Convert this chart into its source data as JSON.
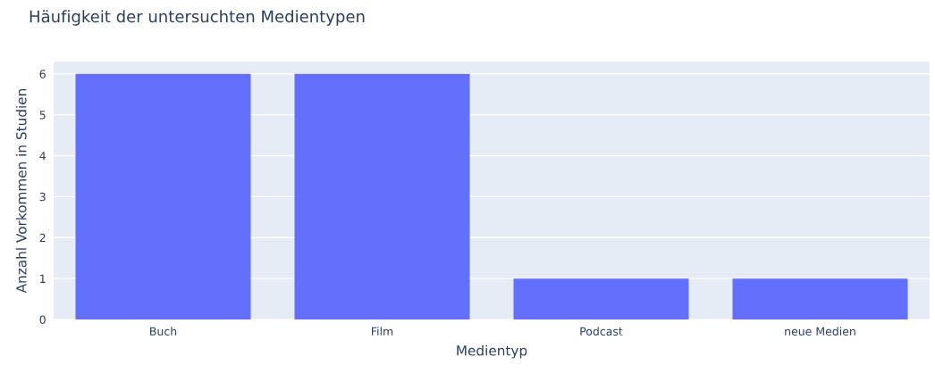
{
  "chart_data": {
    "type": "bar",
    "title": "Häufigkeit der untersuchten Medientypen",
    "xlabel": "Medientyp",
    "ylabel": "Anzahl Vorkommen in Studien",
    "categories": [
      "Buch",
      "Film",
      "Podcast",
      "neue Medien"
    ],
    "values": [
      6,
      6,
      1,
      1
    ],
    "color": "#636efa",
    "ylim": [
      0,
      6.3
    ],
    "yticks": [
      0,
      1,
      2,
      3,
      4,
      5,
      6
    ],
    "grid": "y"
  }
}
